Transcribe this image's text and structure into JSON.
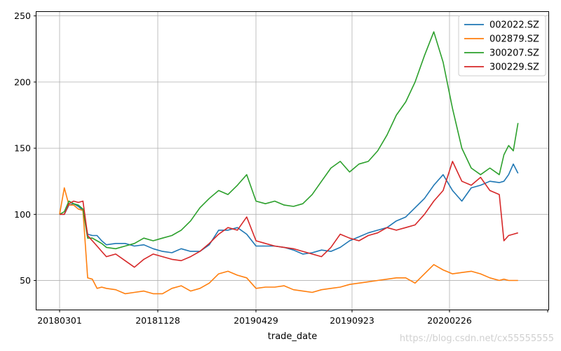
{
  "chart_data": {
    "type": "line",
    "title": "",
    "xlabel": "trade_date",
    "ylabel": "",
    "x_ticks": [
      "20180301",
      "20181128",
      "20190429",
      "20190923",
      "20200226",
      ""
    ],
    "y_ticks": [
      50,
      100,
      150,
      200,
      250
    ],
    "xlim": [
      0,
      100
    ],
    "ylim": [
      28,
      253
    ],
    "grid": true,
    "legend_position": "top-right",
    "x": [
      0,
      1,
      2,
      3,
      4,
      5,
      6,
      7,
      8,
      9,
      10,
      12,
      14,
      16,
      18,
      20,
      22,
      24,
      26,
      28,
      30,
      32,
      34,
      36,
      38,
      40,
      42,
      44,
      46,
      48,
      50,
      52,
      54,
      56,
      58,
      60,
      62,
      64,
      66,
      68,
      70,
      72,
      74,
      76,
      78,
      80,
      82,
      84,
      86,
      88,
      90,
      92,
      94,
      95,
      96,
      97,
      98
    ],
    "series": [
      {
        "name": "002022.SZ",
        "color": "#1f77b4",
        "values": [
          100,
          100,
          107,
          108,
          106,
          103,
          85,
          84,
          84,
          80,
          77,
          78,
          78,
          76,
          77,
          74,
          72,
          71,
          74,
          72,
          72,
          77,
          88,
          88,
          90,
          85,
          76,
          76,
          76,
          75,
          73,
          70,
          71,
          73,
          72,
          75,
          80,
          83,
          86,
          88,
          90,
          95,
          98,
          105,
          112,
          122,
          130,
          118,
          110,
          120,
          122,
          125,
          124,
          125,
          130,
          138,
          131
        ]
      },
      {
        "name": "002879.SZ",
        "color": "#ff7f0e",
        "values": [
          100,
          120,
          107,
          107,
          104,
          103,
          52,
          51,
          44,
          45,
          44,
          43,
          40,
          41,
          42,
          40,
          40,
          44,
          46,
          42,
          44,
          48,
          55,
          57,
          54,
          52,
          44,
          45,
          45,
          46,
          43,
          42,
          41,
          43,
          44,
          45,
          47,
          48,
          49,
          50,
          51,
          52,
          52,
          48,
          55,
          62,
          58,
          55,
          56,
          57,
          55,
          52,
          50,
          51,
          50,
          50,
          50
        ]
      },
      {
        "name": "300207.SZ",
        "color": "#2ca02c",
        "values": [
          100,
          102,
          110,
          108,
          107,
          104,
          82,
          82,
          80,
          78,
          75,
          74,
          76,
          78,
          82,
          80,
          82,
          84,
          88,
          95,
          105,
          112,
          118,
          115,
          122,
          130,
          110,
          108,
          110,
          107,
          106,
          108,
          115,
          125,
          135,
          140,
          132,
          138,
          140,
          148,
          160,
          175,
          185,
          200,
          220,
          238,
          215,
          180,
          150,
          135,
          130,
          135,
          130,
          145,
          152,
          148,
          169
        ]
      },
      {
        "name": "300229.SZ",
        "color": "#d62728",
        "values": [
          100,
          100,
          108,
          110,
          109,
          110,
          84,
          80,
          76,
          72,
          68,
          70,
          65,
          60,
          66,
          70,
          68,
          66,
          65,
          68,
          72,
          78,
          85,
          90,
          88,
          98,
          80,
          78,
          76,
          75,
          74,
          72,
          70,
          68,
          75,
          85,
          82,
          80,
          84,
          86,
          90,
          88,
          90,
          92,
          100,
          110,
          118,
          140,
          125,
          122,
          128,
          118,
          115,
          80,
          84,
          85,
          86
        ]
      }
    ]
  },
  "watermark": "https://blog.csdn.net/cx55555555"
}
